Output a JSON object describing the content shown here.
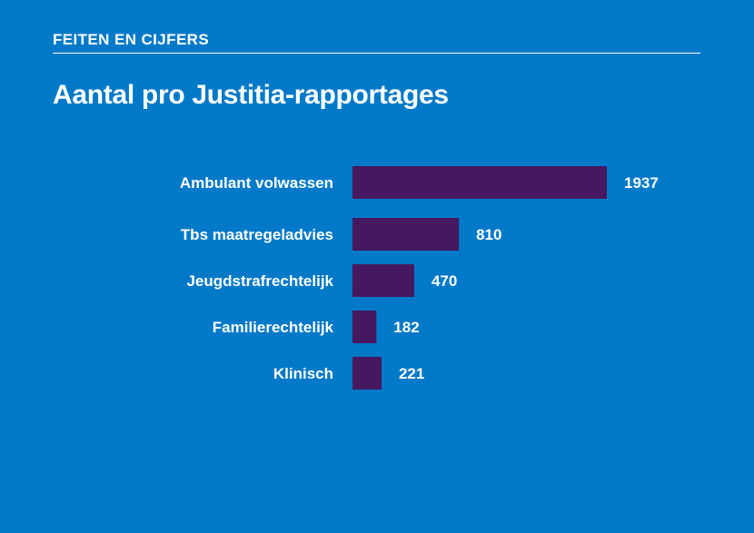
{
  "header": {
    "kicker": "FEITEN EN CIJFERS",
    "title": "Aantal pro Justitia-rapportages"
  },
  "colors": {
    "background": "#0079c8",
    "bar": "#45185f",
    "text": "#ffffff"
  },
  "chart_data": {
    "type": "bar",
    "orientation": "horizontal",
    "title": "Aantal pro Justitia-rapportages",
    "categories": [
      "Ambulant volwassen",
      "Tbs maatregeladvies",
      "Jeugdstrafrechtelijk",
      "Familierechtelijk",
      "Klinisch"
    ],
    "values": [
      1937,
      810,
      470,
      182,
      221
    ],
    "xlim": [
      0,
      1937
    ],
    "grid": false,
    "legend": "none",
    "data_labels": true
  }
}
